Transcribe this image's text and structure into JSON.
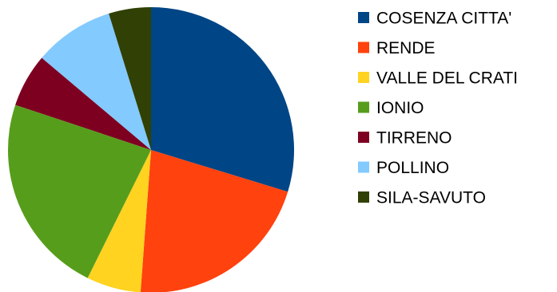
{
  "chart_data": {
    "type": "pie",
    "title": "",
    "categories": [
      "COSENZA CITTA'",
      "RENDE",
      "VALLE DEL CRATI",
      "IONIO",
      "TIRRENO",
      "POLLINO",
      "SILA-SAVUTO"
    ],
    "values": [
      30.5,
      22.0,
      6.3,
      23.4,
      6.2,
      9.3,
      4.9
    ],
    "colors": [
      "#004586",
      "#ff420e",
      "#ffd320",
      "#579d1c",
      "#7e0021",
      "#83caff",
      "#314004"
    ],
    "legend_position": "right",
    "start_angle": "12 o'clock",
    "direction": "clockwise"
  }
}
